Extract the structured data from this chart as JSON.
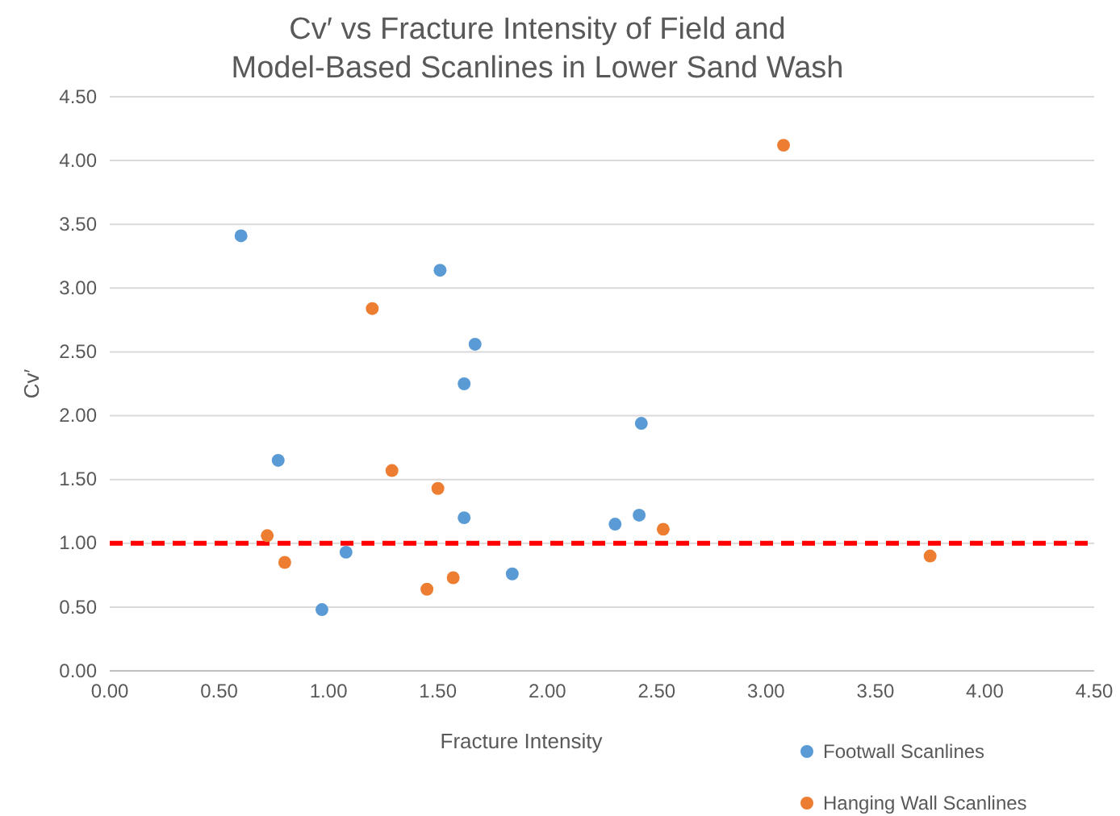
{
  "chart_data": {
    "type": "scatter",
    "title": "Cv′ vs Fracture Intensity of Field and Model-Based Scanlines in Lower Sand Wash",
    "xlabel": "Fracture Intensity",
    "ylabel": "Cv′",
    "xlim": [
      0,
      4.5
    ],
    "xticks": [
      {
        "value": 0,
        "label": "0.00"
      },
      {
        "value": 0.5,
        "label": "0.50"
      },
      {
        "value": 1,
        "label": "1.00"
      },
      {
        "value": 1.5,
        "label": "1.50"
      },
      {
        "value": 2,
        "label": "2.00"
      },
      {
        "value": 2.5,
        "label": "2.50"
      },
      {
        "value": 3,
        "label": "3.00"
      },
      {
        "value": 3.5,
        "label": "3.50"
      },
      {
        "value": 4,
        "label": "4.00"
      },
      {
        "value": 4.5,
        "label": "4.50"
      }
    ],
    "ylim": [
      0,
      4.5
    ],
    "yticks": [
      {
        "value": 0,
        "label": "0.00"
      },
      {
        "value": 0.5,
        "label": "0.50"
      },
      {
        "value": 1,
        "label": "1.00"
      },
      {
        "value": 1.5,
        "label": "1.50"
      },
      {
        "value": 2,
        "label": "2.00"
      },
      {
        "value": 2.5,
        "label": "2.50"
      },
      {
        "value": 3,
        "label": "3.00"
      },
      {
        "value": 3.5,
        "label": "3.50"
      },
      {
        "value": 4,
        "label": "4.00"
      },
      {
        "value": 4.5,
        "label": "4.50"
      }
    ],
    "grid": "y",
    "legend": "bottom right",
    "marker": "circle",
    "ref_lines": [
      {
        "axis": "y",
        "value": 1,
        "color": "#ff0000",
        "line_style": "dashed"
      }
    ],
    "series": [
      {
        "name": "Footwall Scanlines",
        "color": "#5b9bd5",
        "x": [
          0.6,
          1.51,
          1.67,
          1.62,
          2.43,
          0.77,
          1.62,
          2.31,
          2.42,
          1.08,
          1.84,
          0.97
        ],
        "values": [
          3.41,
          3.14,
          2.56,
          2.25,
          1.94,
          1.65,
          1.2,
          1.15,
          1.22,
          0.93,
          0.76,
          0.48
        ]
      },
      {
        "name": "Hanging Wall Scanlines",
        "color": "#ed7d31",
        "x": [
          3.08,
          1.2,
          1.29,
          1.5,
          0.72,
          0.8,
          2.53,
          1.45,
          1.57,
          3.75
        ],
        "values": [
          4.12,
          2.84,
          1.57,
          1.43,
          1.06,
          0.85,
          1.11,
          0.64,
          0.73,
          0.9
        ]
      }
    ]
  }
}
